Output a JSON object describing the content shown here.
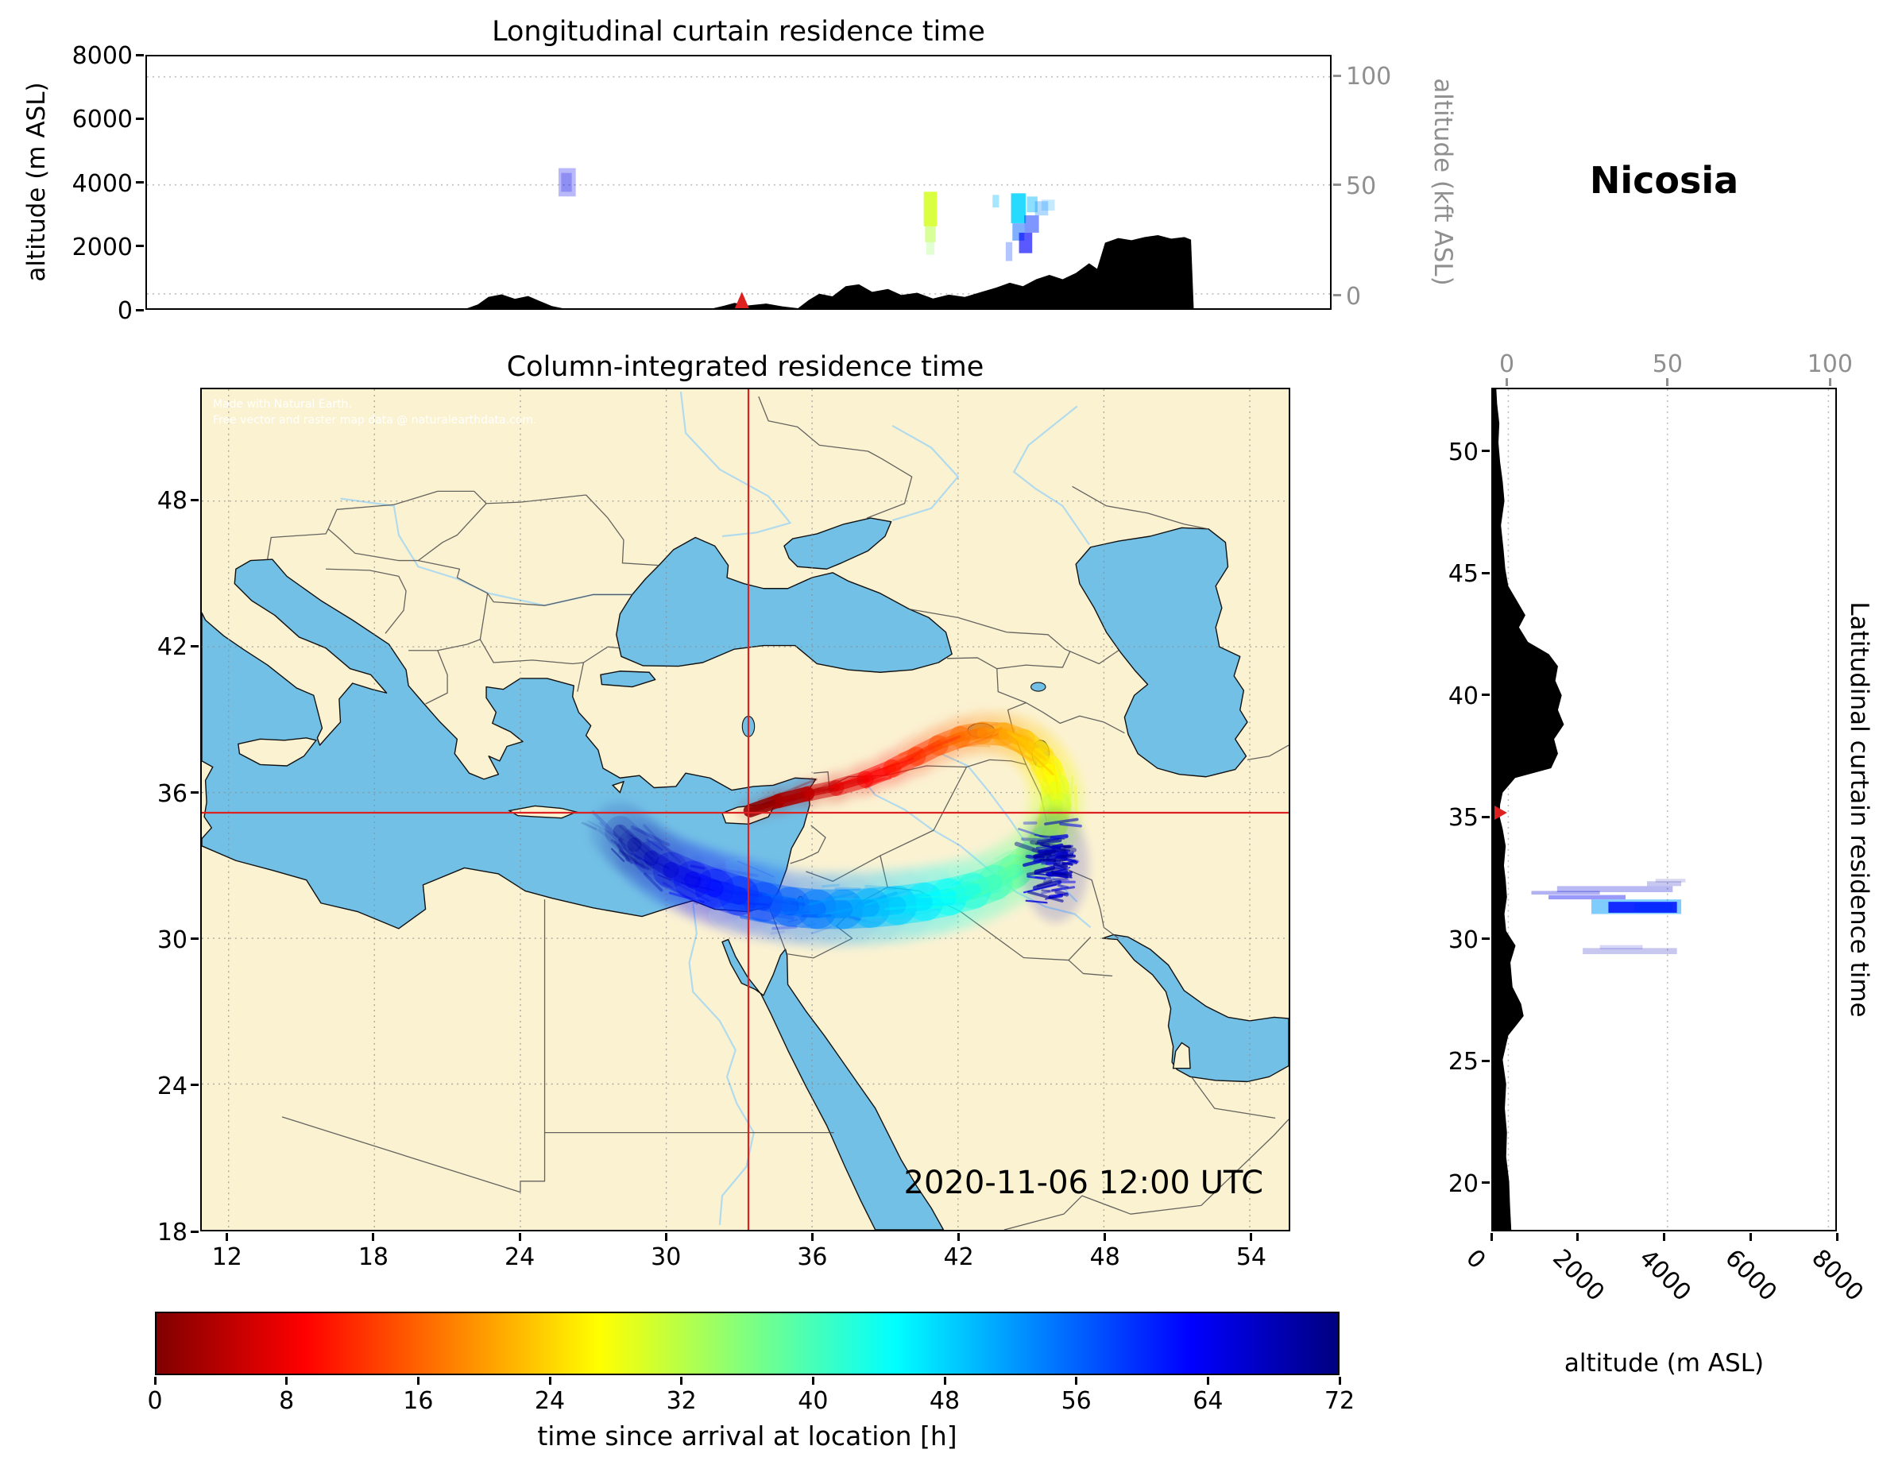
{
  "figure": {
    "station_name": "Nicosia",
    "datetime": "2020-11-06 12:00 UTC",
    "attribution_line1": "Made with Natural Earth.",
    "attribution_line2": "Free vector and raster map data @ naturalearthdata.com."
  },
  "panels": {
    "longitudinal": {
      "title": "Longitudinal curtain residence time",
      "ylabel_left": "altitude (m ASL)",
      "ylabel_right": "altitude (kft ASL)",
      "yticks_left": [
        0,
        2000,
        4000,
        6000,
        8000
      ],
      "yticks_right": [
        {
          "value": 100,
          "frac": 0.081
        },
        {
          "value": 50,
          "frac": 0.51
        },
        {
          "value": 0,
          "frac": 0.943
        }
      ]
    },
    "map": {
      "title": "Column-integrated residence time",
      "lon_ticks": [
        12,
        18,
        24,
        30,
        36,
        42,
        48,
        54
      ],
      "lat_ticks": [
        18,
        24,
        30,
        36,
        42,
        48
      ],
      "lon_range": [
        10.9,
        55.6
      ],
      "lat_range": [
        18,
        52.6
      ]
    },
    "latitudinal": {
      "right_label": "Latitudinal curtain residence time",
      "xlabel": "altitude (m ASL)",
      "xticks_bottom": [
        0,
        2000,
        4000,
        6000,
        8000
      ],
      "xticks_top": [
        {
          "value": 0,
          "frac": 0.045
        },
        {
          "value": 50,
          "frac": 0.51
        },
        {
          "value": 100,
          "frac": 0.98
        }
      ],
      "lat_ticks": [
        20,
        25,
        30,
        35,
        40,
        45,
        50
      ]
    },
    "colorbar": {
      "label": "time since arrival at location [h]",
      "ticks": [
        0,
        8,
        16,
        24,
        32,
        40,
        48,
        56,
        64,
        72
      ],
      "min": 0,
      "max": 72
    }
  },
  "colors": {
    "land": "#fbf2d2",
    "water": "#72c0e6",
    "coast": "#111111",
    "border": "#4a4a4a",
    "river": "#a8d8f0",
    "terrain": "#000000",
    "crosshair": "#dd2020",
    "axis_gray": "#8f8f8f",
    "grid": "#8a8a8a"
  },
  "chart_data": {
    "type": "geo-trajectory-residence-time",
    "station": {
      "name": "Nicosia",
      "lon": 33.38,
      "lat": 35.17
    },
    "datetime": "2020-11-06 12:00 UTC",
    "time_since_arrival_hours_range": [
      0,
      72
    ],
    "colormap_stops": [
      [
        0,
        "#800000"
      ],
      [
        9,
        "#ff0000"
      ],
      [
        27,
        "#ffff00"
      ],
      [
        45,
        "#00ffff"
      ],
      [
        63,
        "#0000ff"
      ],
      [
        72,
        "#000080"
      ]
    ],
    "map_extent": {
      "lon": [
        10.9,
        55.6
      ],
      "lat": [
        18,
        52.6
      ]
    },
    "altitude_range_m": [
      0,
      8000
    ],
    "trajectory_lon_lat_hours": [
      [
        33.45,
        35.25,
        0
      ],
      [
        34.6,
        35.65,
        2
      ],
      [
        35.8,
        35.95,
        4
      ],
      [
        37.0,
        36.2,
        6
      ],
      [
        38.2,
        36.55,
        8
      ],
      [
        39.3,
        37.0,
        10
      ],
      [
        40.3,
        37.5,
        12
      ],
      [
        41.2,
        37.95,
        14
      ],
      [
        42.1,
        38.3,
        16
      ],
      [
        43.0,
        38.45,
        18
      ],
      [
        43.9,
        38.4,
        20
      ],
      [
        44.7,
        38.1,
        22
      ],
      [
        45.3,
        37.6,
        24
      ],
      [
        45.75,
        36.95,
        26
      ],
      [
        46.0,
        36.2,
        28
      ],
      [
        46.05,
        35.45,
        30
      ],
      [
        45.9,
        34.7,
        32
      ],
      [
        45.55,
        33.95,
        34
      ],
      [
        45.0,
        33.3,
        36
      ],
      [
        44.3,
        32.75,
        38
      ],
      [
        43.5,
        32.3,
        40
      ],
      [
        42.6,
        31.95,
        42
      ],
      [
        41.6,
        31.7,
        44
      ],
      [
        40.6,
        31.5,
        46
      ],
      [
        39.5,
        31.35,
        48
      ],
      [
        38.4,
        31.25,
        50
      ],
      [
        37.3,
        31.2,
        52
      ],
      [
        36.2,
        31.2,
        54
      ],
      [
        35.1,
        31.3,
        56
      ],
      [
        34.0,
        31.5,
        58
      ],
      [
        33.0,
        31.75,
        60
      ],
      [
        32.0,
        32.05,
        62
      ],
      [
        31.1,
        32.4,
        64
      ],
      [
        30.2,
        32.8,
        66
      ],
      [
        29.4,
        33.3,
        68
      ],
      [
        28.7,
        33.85,
        70
      ],
      [
        28.1,
        34.4,
        72
      ]
    ],
    "longitudinal_curtain": {
      "terrain_lon_alt_m": [
        [
          10.9,
          0
        ],
        [
          23.0,
          0
        ],
        [
          23.4,
          120
        ],
        [
          23.8,
          360
        ],
        [
          24.3,
          440
        ],
        [
          24.8,
          300
        ],
        [
          25.3,
          390
        ],
        [
          25.8,
          210
        ],
        [
          26.2,
          70
        ],
        [
          26.6,
          0
        ],
        [
          32.3,
          0
        ],
        [
          32.7,
          80
        ],
        [
          33.1,
          170
        ],
        [
          33.6,
          90
        ],
        [
          34.3,
          150
        ],
        [
          34.9,
          60
        ],
        [
          35.5,
          0
        ],
        [
          35.9,
          260
        ],
        [
          36.3,
          460
        ],
        [
          36.8,
          380
        ],
        [
          37.3,
          700
        ],
        [
          37.8,
          760
        ],
        [
          38.3,
          520
        ],
        [
          38.9,
          610
        ],
        [
          39.4,
          420
        ],
        [
          40.0,
          490
        ],
        [
          40.6,
          310
        ],
        [
          41.2,
          430
        ],
        [
          41.8,
          360
        ],
        [
          42.4,
          510
        ],
        [
          43.0,
          660
        ],
        [
          43.5,
          810
        ],
        [
          44.0,
          700
        ],
        [
          44.5,
          920
        ],
        [
          45.0,
          1060
        ],
        [
          45.5,
          920
        ],
        [
          46.0,
          1120
        ],
        [
          46.5,
          1430
        ],
        [
          46.8,
          1250
        ],
        [
          47.1,
          2080
        ],
        [
          47.6,
          2230
        ],
        [
          48.1,
          2160
        ],
        [
          48.6,
          2260
        ],
        [
          49.1,
          2320
        ],
        [
          49.6,
          2210
        ],
        [
          50.1,
          2260
        ],
        [
          50.35,
          2180
        ],
        [
          50.45,
          0
        ],
        [
          55.6,
          0
        ]
      ],
      "patches_lon0_lon1_alt0_alt1_h_alpha": [
        [
          26.45,
          27.1,
          3550,
          4450,
          64,
          0.28
        ],
        [
          26.55,
          26.95,
          3700,
          4300,
          66,
          0.22
        ],
        [
          40.25,
          40.75,
          2600,
          3700,
          30,
          0.9
        ],
        [
          40.3,
          40.7,
          2100,
          2600,
          32,
          0.55
        ],
        [
          40.35,
          40.65,
          1700,
          2100,
          34,
          0.3
        ],
        [
          42.85,
          43.1,
          3200,
          3600,
          50,
          0.35
        ],
        [
          43.55,
          44.1,
          2700,
          3650,
          48,
          0.85
        ],
        [
          44.15,
          44.55,
          3050,
          3550,
          50,
          0.45
        ],
        [
          43.6,
          44.05,
          2150,
          2700,
          56,
          0.5
        ],
        [
          43.85,
          44.35,
          1750,
          2400,
          63,
          0.65
        ],
        [
          44.05,
          44.6,
          2400,
          2950,
          60,
          0.5
        ],
        [
          44.45,
          44.95,
          2950,
          3400,
          54,
          0.3
        ],
        [
          44.7,
          45.2,
          3100,
          3450,
          52,
          0.22
        ],
        [
          43.35,
          43.6,
          1500,
          2100,
          58,
          0.3
        ]
      ]
    },
    "latitudinal_curtain": {
      "terrain_lat_alt_m": [
        [
          18,
          430
        ],
        [
          19,
          400
        ],
        [
          20,
          380
        ],
        [
          21,
          310
        ],
        [
          22,
          330
        ],
        [
          23,
          280
        ],
        [
          24,
          310
        ],
        [
          25,
          230
        ],
        [
          26,
          360
        ],
        [
          26.8,
          720
        ],
        [
          27.3,
          660
        ],
        [
          28,
          460
        ],
        [
          29,
          410
        ],
        [
          29.7,
          530
        ],
        [
          30.3,
          310
        ],
        [
          31,
          270
        ],
        [
          31.7,
          330
        ],
        [
          32.4,
          300
        ],
        [
          33,
          260
        ],
        [
          33.8,
          300
        ],
        [
          34.5,
          230
        ],
        [
          35,
          160
        ],
        [
          35.5,
          170
        ],
        [
          36,
          230
        ],
        [
          36.6,
          520
        ],
        [
          37,
          1360
        ],
        [
          37.6,
          1520
        ],
        [
          38.2,
          1430
        ],
        [
          38.8,
          1660
        ],
        [
          39.4,
          1520
        ],
        [
          40,
          1610
        ],
        [
          40.6,
          1460
        ],
        [
          41.2,
          1520
        ],
        [
          41.7,
          1310
        ],
        [
          42.2,
          820
        ],
        [
          42.8,
          610
        ],
        [
          43.3,
          760
        ],
        [
          43.9,
          560
        ],
        [
          44.5,
          360
        ],
        [
          45.2,
          290
        ],
        [
          46,
          250
        ],
        [
          47,
          190
        ],
        [
          48,
          270
        ],
        [
          48.8,
          230
        ],
        [
          49.6,
          170
        ],
        [
          50.4,
          130
        ],
        [
          51.2,
          150
        ],
        [
          52,
          100
        ],
        [
          52.6,
          80
        ]
      ],
      "patches_lat0_lat1_alt0_alt1_h_alpha": [
        [
          31.0,
          31.6,
          2300,
          4400,
          52,
          0.5
        ],
        [
          31.05,
          31.5,
          2700,
          4300,
          62,
          0.85
        ],
        [
          31.1,
          31.45,
          3300,
          4200,
          60,
          0.6
        ],
        [
          31.6,
          31.78,
          1300,
          3100,
          64,
          0.4
        ],
        [
          31.8,
          31.95,
          900,
          2500,
          66,
          0.3
        ],
        [
          31.9,
          32.15,
          1500,
          4200,
          66,
          0.28
        ],
        [
          32.15,
          32.35,
          3600,
          4400,
          68,
          0.22
        ],
        [
          32.3,
          32.45,
          3800,
          4500,
          70,
          0.15
        ],
        [
          29.35,
          29.6,
          2100,
          4300,
          68,
          0.22
        ],
        [
          29.55,
          29.72,
          2500,
          3500,
          66,
          0.16
        ]
      ]
    }
  }
}
